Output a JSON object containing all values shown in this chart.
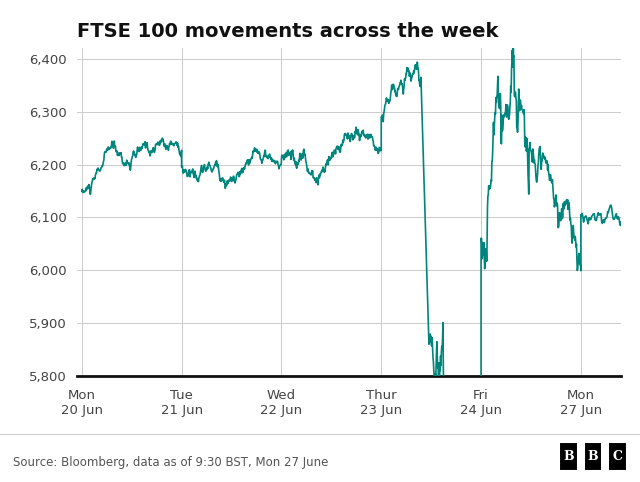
{
  "title": "FTSE 100 movements across the week",
  "source_text": "Source: Bloomberg, data as of 9:30 BST, Mon 27 June",
  "line_color": "#00857d",
  "background_color": "#ffffff",
  "grid_color": "#cccccc",
  "ylim": [
    5800,
    6420
  ],
  "yticks": [
    5800,
    5900,
    6000,
    6100,
    6200,
    6300,
    6400
  ],
  "x_tick_labels": [
    "Mon\n20 Jun",
    "Tue\n21 Jun",
    "Wed\n22 Jun",
    "Thur\n23 Jun",
    "Fri\n24 Jun",
    "Mon\n27 Jun"
  ],
  "title_fontsize": 14,
  "label_fontsize": 9.5,
  "footer_fontsize": 8.5,
  "line_width": 1.2
}
